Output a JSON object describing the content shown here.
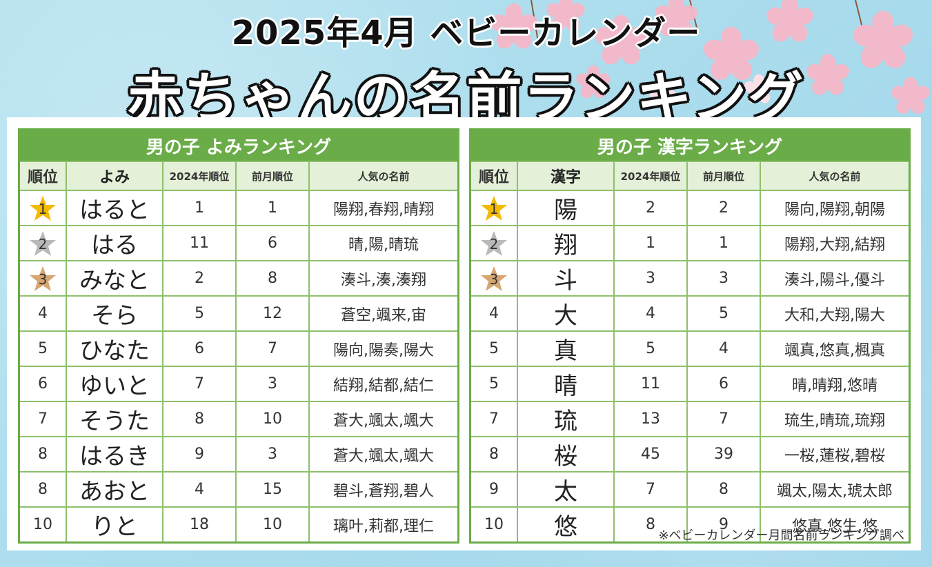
{
  "header": {
    "line1": "2025年4月 ベビーカレンダー",
    "line2": "赤ちゃんの名前ランキング"
  },
  "colors": {
    "green": "#6aac48",
    "gold": "#f5b900",
    "silver": "#b9b9b9",
    "bronze": "#d7a671"
  },
  "left_table": {
    "title": "男の子 よみランキング",
    "headers": [
      "順位",
      "よみ",
      "2024年順位",
      "前月順位",
      "人気の名前"
    ],
    "rows": [
      {
        "rank": "1",
        "name": "はると",
        "y2024": "1",
        "prev": "1",
        "popular": "陽翔,春翔,晴翔",
        "medal": "gold"
      },
      {
        "rank": "2",
        "name": "はる",
        "y2024": "11",
        "prev": "6",
        "popular": "晴,陽,晴琉",
        "medal": "silver"
      },
      {
        "rank": "3",
        "name": "みなと",
        "y2024": "2",
        "prev": "8",
        "popular": "湊斗,湊,湊翔",
        "medal": "bronze"
      },
      {
        "rank": "4",
        "name": "そら",
        "y2024": "5",
        "prev": "12",
        "popular": "蒼空,颯来,宙"
      },
      {
        "rank": "5",
        "name": "ひなた",
        "y2024": "6",
        "prev": "7",
        "popular": "陽向,陽奏,陽大"
      },
      {
        "rank": "6",
        "name": "ゆいと",
        "y2024": "7",
        "prev": "3",
        "popular": "結翔,結都,結仁"
      },
      {
        "rank": "7",
        "name": "そうた",
        "y2024": "8",
        "prev": "10",
        "popular": "蒼大,颯太,颯大"
      },
      {
        "rank": "8",
        "name": "はるき",
        "y2024": "9",
        "prev": "3",
        "popular": "蒼大,颯太,颯大"
      },
      {
        "rank": "8",
        "name": "あおと",
        "y2024": "4",
        "prev": "15",
        "popular": "碧斗,蒼翔,碧人"
      },
      {
        "rank": "10",
        "name": "りと",
        "y2024": "18",
        "prev": "10",
        "popular": "璃叶,莉都,理仁"
      }
    ]
  },
  "right_table": {
    "title": "男の子 漢字ランキング",
    "headers": [
      "順位",
      "漢字",
      "2024年順位",
      "前月順位",
      "人気の名前"
    ],
    "rows": [
      {
        "rank": "1",
        "name": "陽",
        "y2024": "2",
        "prev": "2",
        "popular": "陽向,陽翔,朝陽",
        "medal": "gold"
      },
      {
        "rank": "2",
        "name": "翔",
        "y2024": "1",
        "prev": "1",
        "popular": "陽翔,大翔,結翔",
        "medal": "silver"
      },
      {
        "rank": "3",
        "name": "斗",
        "y2024": "3",
        "prev": "3",
        "popular": "湊斗,陽斗,優斗",
        "medal": "bronze"
      },
      {
        "rank": "4",
        "name": "大",
        "y2024": "4",
        "prev": "5",
        "popular": "大和,大翔,陽大"
      },
      {
        "rank": "5",
        "name": "真",
        "y2024": "5",
        "prev": "4",
        "popular": "颯真,悠真,楓真"
      },
      {
        "rank": "5",
        "name": "晴",
        "y2024": "11",
        "prev": "6",
        "popular": "晴,晴翔,悠晴"
      },
      {
        "rank": "7",
        "name": "琉",
        "y2024": "13",
        "prev": "7",
        "popular": "琉生,晴琉,琉翔"
      },
      {
        "rank": "8",
        "name": "桜",
        "y2024": "45",
        "prev": "39",
        "popular": "一桜,蓮桜,碧桜"
      },
      {
        "rank": "9",
        "name": "太",
        "y2024": "7",
        "prev": "8",
        "popular": "颯太,陽太,琥太郎"
      },
      {
        "rank": "10",
        "name": "悠",
        "y2024": "8",
        "prev": "9",
        "popular": "悠真,悠生,悠"
      }
    ]
  },
  "footnote": "※ベビーカレンダー月間名前ランキング調べ"
}
